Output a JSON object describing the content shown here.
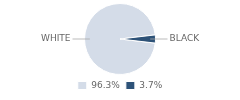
{
  "chart_data": {
    "type": "pie",
    "categories": [
      "WHITE",
      "BLACK"
    ],
    "values": [
      96.3,
      3.7
    ],
    "value_labels": [
      "96.3%",
      "3.7%"
    ],
    "colors": [
      "#d4dce8",
      "#2d5278"
    ],
    "legend": "bottom"
  }
}
